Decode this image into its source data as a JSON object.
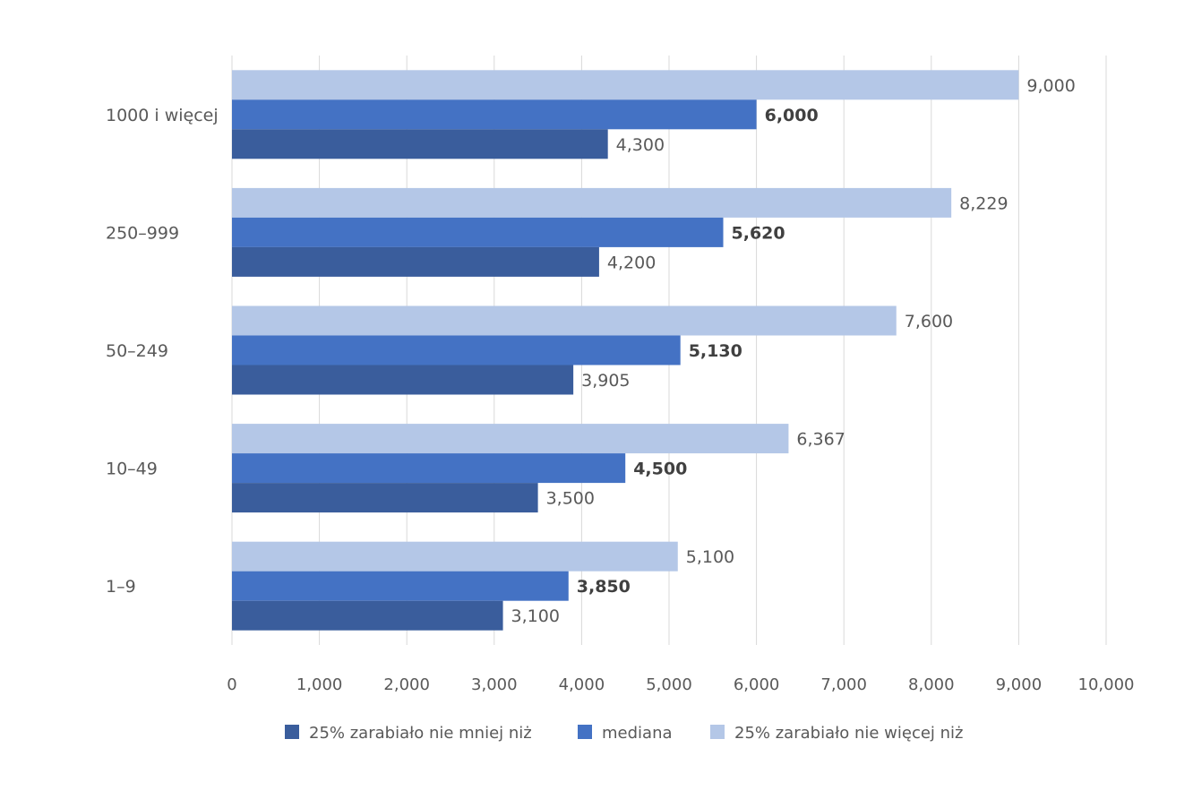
{
  "chart_data": {
    "type": "bar",
    "orientation": "horizontal",
    "categories": [
      "1000 i więcej",
      "250–999",
      "50–249",
      "10–49",
      "1–9"
    ],
    "series": [
      {
        "name": "25% zarabiało nie więcej niż",
        "color": "#b4c7e7",
        "values": [
          9000,
          8229,
          7600,
          6367,
          5100
        ],
        "labels": [
          "9,000",
          "8,229",
          "7,600",
          "6,367",
          "5,100"
        ],
        "label_bold": false
      },
      {
        "name": "mediana",
        "color": "#4472c4",
        "values": [
          6000,
          5620,
          5130,
          4500,
          3850
        ],
        "labels": [
          "6,000",
          "5,620",
          "5,130",
          "4,500",
          "3,850"
        ],
        "label_bold": true
      },
      {
        "name": "25% zarabiało nie mniej niż",
        "color": "#3a5d9c",
        "values": [
          4300,
          4200,
          3905,
          3500,
          3100
        ],
        "labels": [
          "4,300",
          "4,200",
          "3,905",
          "3,500",
          "3,100"
        ],
        "label_bold": false
      }
    ],
    "legend_order": [
      2,
      1,
      0
    ],
    "xlim": [
      0,
      10000
    ],
    "x_ticks": [
      0,
      1000,
      2000,
      3000,
      4000,
      5000,
      6000,
      7000,
      8000,
      9000,
      10000
    ],
    "x_tick_labels": [
      "0",
      "1,000",
      "2,000",
      "3,000",
      "4,000",
      "5,000",
      "6,000",
      "7,000",
      "8,000",
      "9,000",
      "10,000"
    ],
    "grid": true,
    "legend_position": "bottom",
    "title": "",
    "xlabel": "",
    "ylabel": ""
  }
}
